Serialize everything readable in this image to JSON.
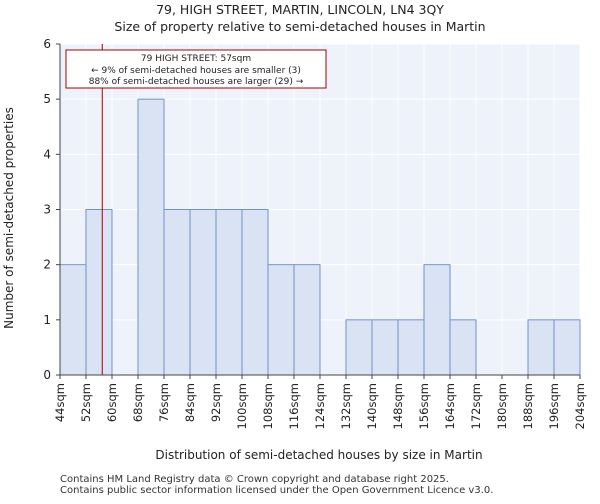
{
  "chart_data": {
    "type": "bar",
    "title_line1": "79, HIGH STREET, MARTIN, LINCOLN, LN4 3QY",
    "title_line2": "Size of property relative to semi-detached houses in Martin",
    "xlabel": "Distribution of semi-detached houses by size in Martin",
    "ylabel": "Number of semi-detached properties",
    "bin_edges": [
      44,
      52,
      60,
      68,
      76,
      84,
      92,
      100,
      108,
      116,
      124,
      132,
      140,
      148,
      156,
      164,
      172,
      180,
      188,
      196,
      204
    ],
    "tick_labels": [
      "44sqm",
      "52sqm",
      "60sqm",
      "68sqm",
      "76sqm",
      "84sqm",
      "92sqm",
      "100sqm",
      "108sqm",
      "116sqm",
      "124sqm",
      "132sqm",
      "140sqm",
      "148sqm",
      "156sqm",
      "164sqm",
      "172sqm",
      "180sqm",
      "188sqm",
      "196sqm",
      "204sqm"
    ],
    "values": [
      2,
      3,
      0,
      5,
      3,
      3,
      3,
      3,
      2,
      2,
      0,
      1,
      1,
      1,
      2,
      1,
      0,
      0,
      1,
      1
    ],
    "ylim": [
      0,
      6
    ],
    "yticks": [
      0,
      1,
      2,
      3,
      4,
      5,
      6
    ],
    "marker": {
      "value": 57,
      "color": "#aa0000"
    },
    "annotation": {
      "line1": "79 HIGH STREET: 57sqm",
      "line2": "← 9% of semi-detached houses are smaller (3)",
      "line3": "88% of semi-detached houses are larger (29) →"
    },
    "colors": {
      "bar_fill": "#dae3f3",
      "bar_edge": "#7392cc",
      "background": "#eef2fa",
      "grid": "#ffffff"
    }
  },
  "footer": {
    "line1": "Contains HM Land Registry data © Crown copyright and database right 2025.",
    "line2": "Contains public sector information licensed under the Open Government Licence v3.0."
  }
}
